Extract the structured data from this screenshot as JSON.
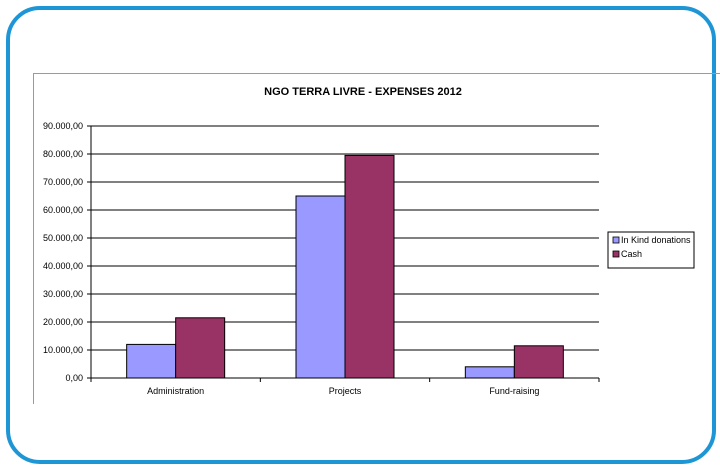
{
  "chart_data": {
    "type": "bar",
    "title": "NGO TERRA LIVRE - EXPENSES 2012",
    "categories": [
      "Administration",
      "Projects",
      "Fund-raising"
    ],
    "series": [
      {
        "name": "In Kind donations",
        "values": [
          12000,
          65000,
          4000
        ]
      },
      {
        "name": "Cash",
        "values": [
          21500,
          79500,
          11500
        ]
      }
    ],
    "y_ticks": [
      "0,00",
      "10.000,00",
      "20.000,00",
      "30.000,00",
      "40.000,00",
      "50.000,00",
      "60.000,00",
      "70.000,00",
      "80.000,00",
      "90.000,00"
    ],
    "ylim": [
      0,
      90000
    ],
    "grid": true,
    "legend": "right",
    "colors": {
      "In Kind donations": "#9999ff",
      "Cash": "#993366",
      "frame": "#1e96d6"
    }
  }
}
